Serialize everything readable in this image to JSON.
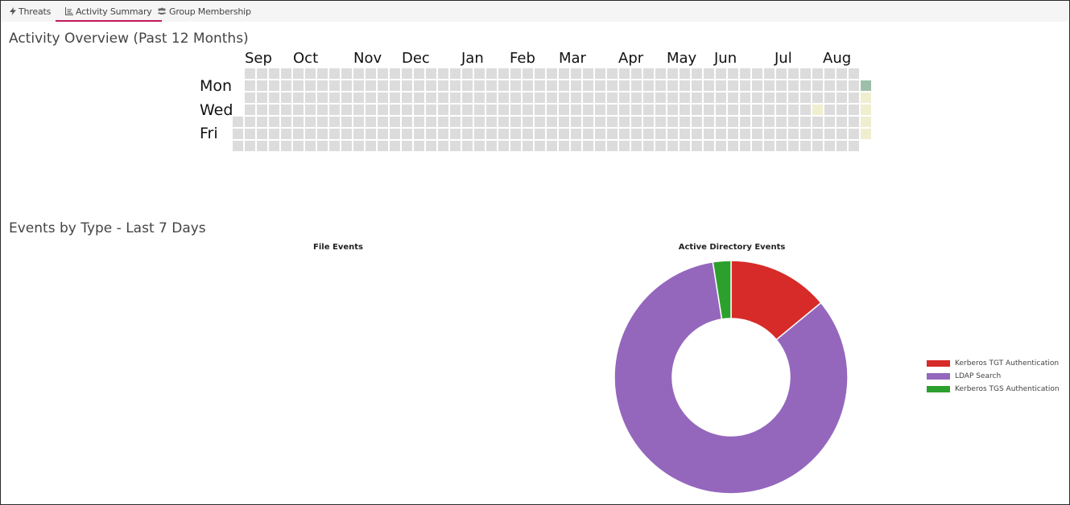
{
  "tabs": [
    {
      "label": "Threats",
      "icon": "bolt-icon",
      "active": false
    },
    {
      "label": "Activity Summary",
      "icon": "chart-icon",
      "active": true
    },
    {
      "label": "Group Membership",
      "icon": "users-icon",
      "active": false
    }
  ],
  "activity": {
    "title": "Activity Overview (Past 12 Months)",
    "months": [
      "Sep",
      "Oct",
      "Nov",
      "Dec",
      "Jan",
      "Feb",
      "Mar",
      "Apr",
      "May",
      "Jun",
      "Jul",
      "Aug"
    ],
    "days": [
      "Mon",
      "Wed",
      "Fri"
    ],
    "colors": {
      "empty": "#dcdcdc",
      "low": "#efeecf",
      "high": "#9dbfa9"
    },
    "highlighted_cells": [
      {
        "week": 48,
        "day": 3,
        "level": "low"
      },
      {
        "week": 52,
        "day": 1,
        "level": "high"
      },
      {
        "week": 52,
        "day": 2,
        "level": "low"
      },
      {
        "week": 52,
        "day": 3,
        "level": "low"
      },
      {
        "week": 52,
        "day": 4,
        "level": "low"
      },
      {
        "week": 52,
        "day": 5,
        "level": "low"
      }
    ]
  },
  "events": {
    "title": "Events by Type - Last 7 Days",
    "file_events_title": "File Events",
    "ad_events_title": "Active Directory Events",
    "chart_data": {
      "type": "pie",
      "title": "Active Directory Events",
      "series": [
        {
          "name": "Kerberos TGT Authentication",
          "value": 14,
          "color": "#d62b28"
        },
        {
          "name": "LDAP Search",
          "value": 83.5,
          "color": "#9467bd"
        },
        {
          "name": "Kerberos TGS Authentication",
          "value": 2.5,
          "color": "#2ca02c"
        }
      ]
    }
  }
}
